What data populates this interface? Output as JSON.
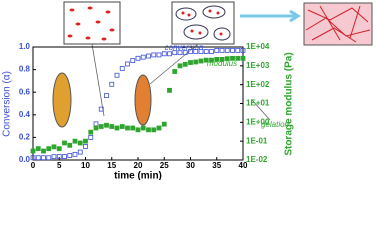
{
  "chart_data": {
    "type": "line",
    "xlabel": "time (min)",
    "ylabel": "Conversion (α)",
    "y2label": "Storage modulus (Pa)",
    "x": [
      0,
      1,
      2,
      3,
      4,
      5,
      6,
      7,
      8,
      9,
      10,
      11,
      12,
      13,
      14,
      15,
      16,
      17,
      18,
      19,
      20,
      21,
      22,
      23,
      24,
      25,
      26,
      27,
      28,
      29,
      30,
      31,
      32,
      33,
      34,
      35,
      36,
      37,
      38,
      39,
      40
    ],
    "series": [
      {
        "name": "conversion",
        "color": "#3b4fd8",
        "marker": "open-square",
        "axis": "y",
        "values": [
          0.02,
          0.02,
          0.02,
          0.02,
          0.03,
          0.03,
          0.03,
          0.04,
          0.05,
          0.07,
          0.12,
          0.2,
          0.32,
          0.45,
          0.57,
          0.67,
          0.75,
          0.81,
          0.85,
          0.88,
          0.9,
          0.91,
          0.92,
          0.93,
          0.93,
          0.94,
          0.94,
          0.95,
          0.95,
          0.95,
          0.96,
          0.96,
          0.96,
          0.96,
          0.96,
          0.97,
          0.97,
          0.97,
          0.97,
          0.97,
          0.97
        ]
      },
      {
        "name": "modulus",
        "color": "#2fa52f",
        "marker": "square",
        "axis": "y2",
        "values": [
          0.03,
          0.04,
          0.03,
          0.04,
          0.05,
          0.04,
          0.08,
          0.06,
          0.1,
          0.08,
          0.1,
          0.3,
          0.5,
          0.6,
          0.7,
          0.6,
          0.5,
          0.6,
          0.5,
          0.5,
          0.4,
          0.5,
          0.4,
          0.4,
          0.5,
          0.8,
          50,
          500,
          1000,
          1200,
          1500,
          1600,
          1800,
          2000,
          2000,
          2200,
          2200,
          2400,
          2500,
          2500,
          2500
        ]
      }
    ],
    "annotations": [
      "gelation"
    ],
    "xlim": [
      0,
      40
    ],
    "xticks": [
      0,
      5,
      10,
      15,
      20,
      25,
      30,
      35,
      40
    ],
    "ylim": [
      0,
      1
    ],
    "yticks": [
      {
        "value": 0,
        "label": "0.0"
      },
      0.2,
      0.4,
      0.6,
      0.8,
      {
        "value": 1,
        "label": "1.0"
      }
    ],
    "y2scale": "log",
    "y2lim": [
      0.01,
      10000
    ],
    "y2ticks": [
      {
        "value": 0.01,
        "label": "1E-02"
      },
      {
        "value": 0.1,
        "label": "1E-01"
      },
      {
        "value": 1,
        "label": "1E+00"
      },
      {
        "value": 10,
        "label": "1E+01"
      },
      {
        "value": 100,
        "label": "1E+02"
      },
      {
        "value": 1000,
        "label": "1E+03"
      },
      {
        "value": 10000,
        "label": "1E+04"
      }
    ]
  }
}
